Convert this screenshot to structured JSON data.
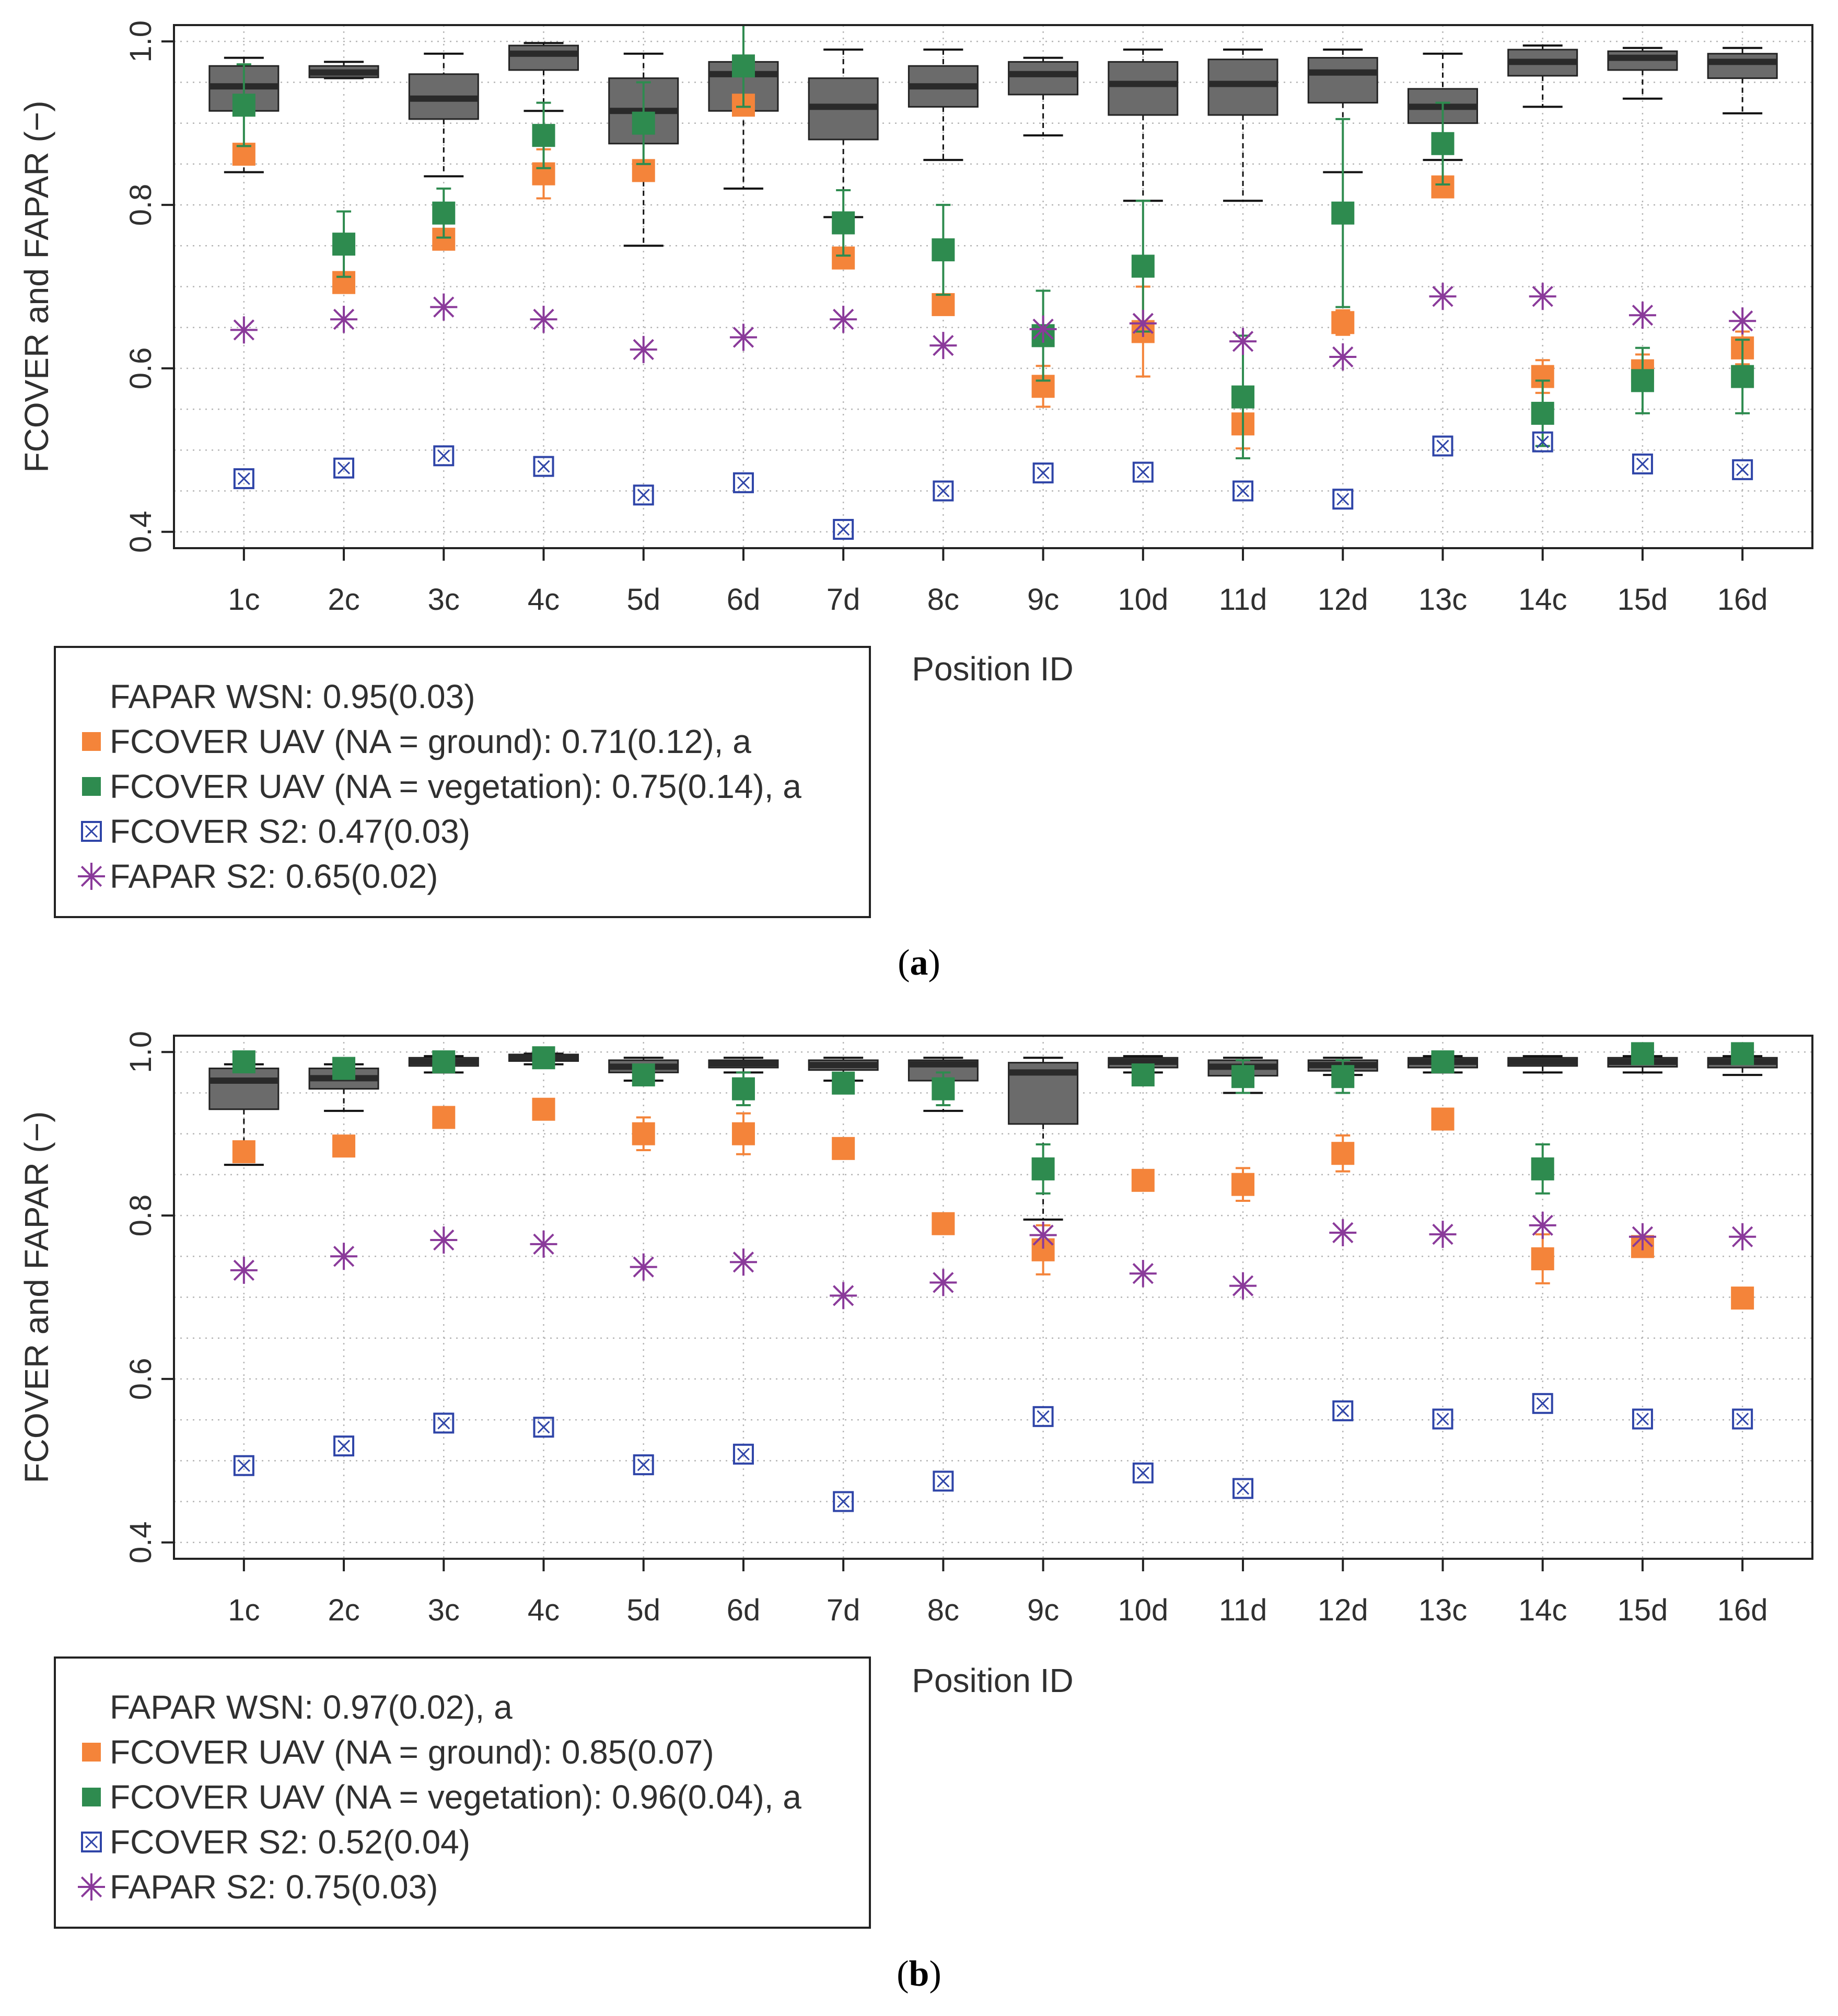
{
  "colors": {
    "box_fill": "#6b6b6b",
    "median": "#2a2a2a",
    "uav_ground": "#f4843a",
    "uav_vegetation": "#2e8b4f",
    "s2_fcover": "#2f45a8",
    "s2_fapar": "#8a3a9a",
    "grid": "#b5b5b5"
  },
  "chart_data": [
    {
      "id": "a",
      "type": "box+scatter",
      "caption": "a",
      "xlabel": "Position ID",
      "ylabel": "FCOVER and FAPAR (−)",
      "ylim": [
        0.38,
        1.02
      ],
      "ytick_values": [
        0.4,
        0.6,
        0.8,
        1.0
      ],
      "ytick_labels": [
        "0.4",
        "0.6",
        "0.8",
        "1.0"
      ],
      "categories": [
        "1c",
        "2c",
        "3c",
        "4c",
        "5d",
        "6d",
        "7d",
        "8c",
        "9c",
        "10d",
        "11d",
        "12d",
        "13c",
        "14c",
        "15d",
        "16d"
      ],
      "legend": [
        {
          "key": "wsn",
          "label": "FAPAR WSN: 0.95(0.03)"
        },
        {
          "key": "uav_ground",
          "label": "FCOVER UAV (NA = ground): 0.71(0.12), a"
        },
        {
          "key": "uav_vegetation",
          "label": "FCOVER UAV (NA = vegetation): 0.75(0.14), a"
        },
        {
          "key": "s2_fcover",
          "label": "FCOVER S2: 0.47(0.03)"
        },
        {
          "key": "s2_fapar",
          "label": "FAPAR S2: 0.65(0.02)"
        }
      ],
      "boxes": [
        {
          "wlo": 0.84,
          "q1": 0.915,
          "med": 0.945,
          "q3": 0.97,
          "whi": 0.98
        },
        {
          "wlo": 0.955,
          "q1": 0.956,
          "med": 0.962,
          "q3": 0.97,
          "whi": 0.975
        },
        {
          "wlo": 0.835,
          "q1": 0.905,
          "med": 0.93,
          "q3": 0.96,
          "whi": 0.985
        },
        {
          "wlo": 0.915,
          "q1": 0.965,
          "med": 0.985,
          "q3": 0.995,
          "whi": 0.998
        },
        {
          "wlo": 0.75,
          "q1": 0.875,
          "med": 0.915,
          "q3": 0.955,
          "whi": 0.985
        },
        {
          "wlo": 0.82,
          "q1": 0.915,
          "med": 0.96,
          "q3": 0.975,
          "whi": 1.02
        },
        {
          "wlo": 0.785,
          "q1": 0.88,
          "med": 0.92,
          "q3": 0.955,
          "whi": 0.99
        },
        {
          "wlo": 0.855,
          "q1": 0.92,
          "med": 0.945,
          "q3": 0.97,
          "whi": 0.99
        },
        {
          "wlo": 0.885,
          "q1": 0.935,
          "med": 0.96,
          "q3": 0.975,
          "whi": 0.98
        },
        {
          "wlo": 0.805,
          "q1": 0.91,
          "med": 0.948,
          "q3": 0.975,
          "whi": 0.99
        },
        {
          "wlo": 0.805,
          "q1": 0.91,
          "med": 0.948,
          "q3": 0.978,
          "whi": 0.99
        },
        {
          "wlo": 0.84,
          "q1": 0.925,
          "med": 0.962,
          "q3": 0.98,
          "whi": 0.99
        },
        {
          "wlo": 0.855,
          "q1": 0.9,
          "med": 0.92,
          "q3": 0.942,
          "whi": 0.985
        },
        {
          "wlo": 0.92,
          "q1": 0.958,
          "med": 0.975,
          "q3": 0.99,
          "whi": 0.995
        },
        {
          "wlo": 0.93,
          "q1": 0.965,
          "med": 0.98,
          "q3": 0.988,
          "whi": 0.992
        },
        {
          "wlo": 0.912,
          "q1": 0.955,
          "med": 0.975,
          "q3": 0.985,
          "whi": 0.992
        }
      ],
      "uav_ground": {
        "values": [
          0.862,
          0.705,
          0.758,
          0.838,
          0.842,
          0.922,
          0.735,
          0.678,
          0.578,
          0.645,
          0.532,
          0.656,
          0.822,
          0.59,
          0.597,
          0.625
        ],
        "err": [
          0.01,
          0.012,
          0.01,
          0.03,
          0.01,
          0.01,
          0.01,
          0.01,
          0.025,
          0.055,
          0.03,
          0.015,
          0.01,
          0.02,
          0.02,
          0.02
        ]
      },
      "uav_vegetation": {
        "values": [
          0.922,
          0.752,
          0.79,
          0.885,
          0.9,
          0.97,
          0.778,
          0.745,
          0.64,
          0.725,
          0.565,
          0.79,
          0.875,
          0.545,
          0.585,
          0.59
        ],
        "err": [
          0.05,
          0.04,
          0.03,
          0.04,
          0.05,
          0.05,
          0.04,
          0.055,
          0.055,
          0.08,
          0.075,
          0.115,
          0.05,
          0.04,
          0.04,
          0.045
        ]
      },
      "s2_fcover": [
        0.465,
        0.478,
        0.493,
        0.48,
        0.445,
        0.46,
        0.403,
        0.45,
        0.472,
        0.473,
        0.45,
        0.44,
        0.505,
        0.51,
        0.483,
        0.476
      ],
      "s2_fapar": [
        0.647,
        0.66,
        0.675,
        0.66,
        0.623,
        0.638,
        0.66,
        0.628,
        0.648,
        0.655,
        0.633,
        0.614,
        0.688,
        0.688,
        0.665,
        0.658
      ]
    },
    {
      "id": "b",
      "type": "box+scatter",
      "caption": "b",
      "xlabel": "Position ID",
      "ylabel": "FCOVER and FAPAR (−)",
      "ylim": [
        0.38,
        1.02
      ],
      "ytick_values": [
        0.4,
        0.6,
        0.8,
        1.0
      ],
      "ytick_labels": [
        "0.4",
        "0.6",
        "0.8",
        "1.0"
      ],
      "categories": [
        "1c",
        "2c",
        "3c",
        "4c",
        "5d",
        "6d",
        "7d",
        "8c",
        "9c",
        "10d",
        "11d",
        "12d",
        "13c",
        "14c",
        "15d",
        "16d"
      ],
      "legend": [
        {
          "key": "wsn",
          "label": "FAPAR WSN: 0.97(0.02), a"
        },
        {
          "key": "uav_ground",
          "label": "FCOVER UAV (NA = ground): 0.85(0.07)"
        },
        {
          "key": "uav_vegetation",
          "label": "FCOVER UAV (NA = vegetation): 0.96(0.04), a"
        },
        {
          "key": "s2_fcover",
          "label": "FCOVER S2: 0.52(0.04)"
        },
        {
          "key": "s2_fapar",
          "label": "FAPAR S2: 0.75(0.03)"
        }
      ],
      "boxes": [
        {
          "wlo": 0.862,
          "q1": 0.93,
          "med": 0.965,
          "q3": 0.98,
          "whi": 0.985
        },
        {
          "wlo": 0.928,
          "q1": 0.955,
          "med": 0.968,
          "q3": 0.98,
          "whi": 0.985
        },
        {
          "wlo": 0.975,
          "q1": 0.983,
          "med": 0.988,
          "q3": 0.993,
          "whi": 0.995
        },
        {
          "wlo": 0.985,
          "q1": 0.989,
          "med": 0.993,
          "q3": 0.997,
          "whi": 0.998
        },
        {
          "wlo": 0.965,
          "q1": 0.975,
          "med": 0.982,
          "q3": 0.99,
          "whi": 0.993
        },
        {
          "wlo": 0.975,
          "q1": 0.981,
          "med": 0.986,
          "q3": 0.99,
          "whi": 0.993
        },
        {
          "wlo": 0.965,
          "q1": 0.978,
          "med": 0.984,
          "q3": 0.99,
          "whi": 0.993
        },
        {
          "wlo": 0.928,
          "q1": 0.965,
          "med": 0.985,
          "q3": 0.99,
          "whi": 0.993
        },
        {
          "wlo": 0.795,
          "q1": 0.912,
          "med": 0.975,
          "q3": 0.987,
          "whi": 0.993
        },
        {
          "wlo": 0.975,
          "q1": 0.981,
          "med": 0.988,
          "q3": 0.993,
          "whi": 0.995
        },
        {
          "wlo": 0.95,
          "q1": 0.971,
          "med": 0.982,
          "q3": 0.99,
          "whi": 0.993
        },
        {
          "wlo": 0.972,
          "q1": 0.977,
          "med": 0.984,
          "q3": 0.99,
          "whi": 0.993
        },
        {
          "wlo": 0.975,
          "q1": 0.981,
          "med": 0.988,
          "q3": 0.993,
          "whi": 0.995
        },
        {
          "wlo": 0.975,
          "q1": 0.983,
          "med": 0.988,
          "q3": 0.993,
          "whi": 0.995
        },
        {
          "wlo": 0.975,
          "q1": 0.982,
          "med": 0.988,
          "q3": 0.993,
          "whi": 0.995
        },
        {
          "wlo": 0.972,
          "q1": 0.981,
          "med": 0.988,
          "q3": 0.993,
          "whi": 0.995
        }
      ],
      "uav_ground": {
        "values": [
          0.878,
          0.885,
          0.92,
          0.93,
          0.9,
          0.9,
          0.882,
          0.79,
          0.758,
          0.843,
          0.838,
          0.876,
          0.918,
          0.747,
          0.762,
          0.699
        ],
        "err": [
          0.01,
          0.008,
          0.008,
          0.008,
          0.02,
          0.025,
          0.008,
          0.008,
          0.03,
          0.008,
          0.02,
          0.022,
          0.008,
          0.03,
          0.008,
          0.008
        ]
      },
      "uav_vegetation": {
        "values": [
          0.988,
          0.98,
          0.988,
          0.993,
          0.972,
          0.955,
          0.962,
          0.955,
          0.857,
          0.972,
          0.97,
          0.97,
          0.988,
          0.857,
          0.998,
          0.998
        ],
        "err": [
          0.008,
          0.008,
          0.008,
          0.008,
          0.008,
          0.02,
          0.008,
          0.02,
          0.03,
          0.008,
          0.02,
          0.02,
          0.008,
          0.03,
          0.008,
          0.008
        ]
      },
      "s2_fcover": [
        0.494,
        0.518,
        0.546,
        0.541,
        0.495,
        0.508,
        0.45,
        0.475,
        0.554,
        0.485,
        0.466,
        0.561,
        0.551,
        0.57,
        0.551,
        0.551
      ],
      "s2_fapar": [
        0.733,
        0.75,
        0.77,
        0.765,
        0.737,
        0.743,
        0.702,
        0.718,
        0.776,
        0.729,
        0.714,
        0.779,
        0.777,
        0.788,
        0.774,
        0.774
      ]
    }
  ]
}
